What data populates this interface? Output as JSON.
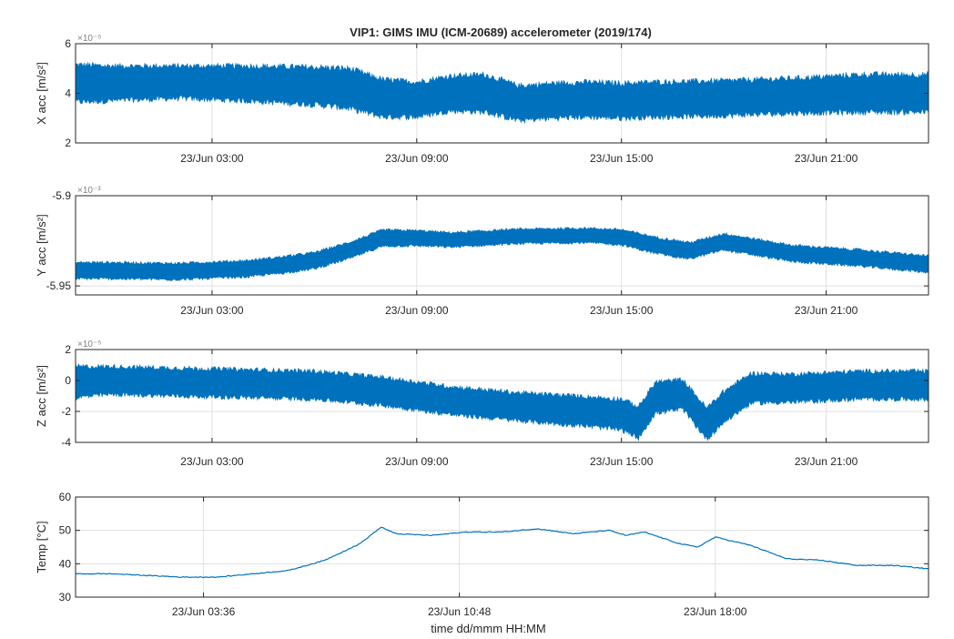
{
  "title": "VIP1: GIMS IMU (ICM-20689) accelerometer (2019/174)",
  "footer": "",
  "colors": {
    "series": "#0072BD",
    "axis": "#262626",
    "grid": "#e0e0e0"
  },
  "chart_data": [
    {
      "type": "area",
      "name": "x_acc",
      "ylabel": "X acc [m/s²]",
      "exponent": "×10⁻⁵",
      "ylim": [
        2,
        6
      ],
      "yticks": [
        2,
        4,
        6
      ],
      "xlim_hours": [
        -1,
        24
      ],
      "xticks_hours": [
        3,
        9,
        15,
        21
      ],
      "xtick_labels": [
        "23/Jun 03:00",
        "23/Jun 09:00",
        "23/Jun 15:00",
        "23/Jun 21:00"
      ],
      "series": [
        {
          "x_hours": [
            -1,
            0,
            2,
            4,
            6,
            7,
            8,
            9,
            10,
            11,
            12,
            13,
            14,
            15,
            16,
            18,
            20,
            22,
            24
          ],
          "center": [
            4.4,
            4.4,
            4.45,
            4.4,
            4.3,
            4.2,
            3.8,
            3.75,
            4.0,
            4.0,
            3.6,
            3.7,
            3.75,
            3.7,
            3.75,
            3.8,
            3.9,
            4.0,
            4.0
          ],
          "half_band": [
            0.75,
            0.7,
            0.65,
            0.7,
            0.75,
            0.8,
            0.75,
            0.7,
            0.7,
            0.75,
            0.7,
            0.7,
            0.7,
            0.7,
            0.7,
            0.7,
            0.7,
            0.75,
            0.75
          ]
        }
      ]
    },
    {
      "type": "area",
      "name": "y_acc",
      "ylabel": "Y acc [m/s²]",
      "exponent": "×10⁻³",
      "ylim": [
        -5.955,
        -5.9
      ],
      "yticks": [
        -5.95,
        -5.9
      ],
      "ytick_labels": [
        "-5.95",
        "-5.9"
      ],
      "xlim_hours": [
        -1,
        24
      ],
      "xticks_hours": [
        3,
        9,
        15,
        21
      ],
      "xtick_labels": [
        "23/Jun 03:00",
        "23/Jun 09:00",
        "23/Jun 15:00",
        "23/Jun 21:00"
      ],
      "series": [
        {
          "x_hours": [
            -1,
            0,
            2,
            4,
            5,
            6,
            7,
            8,
            9,
            10,
            12,
            14,
            15,
            16,
            17,
            18,
            20,
            22,
            24
          ],
          "center": [
            -5.9415,
            -5.9415,
            -5.942,
            -5.9405,
            -5.9385,
            -5.936,
            -5.9305,
            -5.9235,
            -5.9235,
            -5.9245,
            -5.9225,
            -5.922,
            -5.923,
            -5.9275,
            -5.9305,
            -5.9255,
            -5.932,
            -5.9345,
            -5.938
          ],
          "half_band": [
            0.0045,
            0.0045,
            0.0045,
            0.0045,
            0.0045,
            0.0045,
            0.0045,
            0.0045,
            0.0042,
            0.004,
            0.004,
            0.004,
            0.0042,
            0.0045,
            0.0045,
            0.0045,
            0.0045,
            0.0045,
            0.0045
          ]
        }
      ]
    },
    {
      "type": "area",
      "name": "z_acc",
      "ylabel": "Z acc [m/s²]",
      "exponent": "×10⁻⁵",
      "ylim": [
        -4,
        2
      ],
      "yticks": [
        -4,
        -2,
        0,
        2
      ],
      "xlim_hours": [
        -1,
        24
      ],
      "xticks_hours": [
        3,
        9,
        15,
        21
      ],
      "xtick_labels": [
        "23/Jun 03:00",
        "23/Jun 09:00",
        "23/Jun 15:00",
        "23/Jun 21:00"
      ],
      "series": [
        {
          "x_hours": [
            -1,
            0,
            2,
            4,
            6,
            8,
            10,
            12,
            14,
            15,
            15.5,
            16,
            16.8,
            17.5,
            18,
            18.8,
            20,
            22,
            24
          ],
          "center": [
            -0.1,
            0,
            -0.1,
            -0.2,
            -0.3,
            -0.7,
            -1.3,
            -1.7,
            -2.0,
            -2.2,
            -2.7,
            -1.1,
            -0.9,
            -2.8,
            -1.7,
            -0.5,
            -0.5,
            -0.3,
            -0.3
          ],
          "half_band": [
            1.0,
            0.9,
            0.9,
            0.9,
            0.9,
            0.9,
            0.9,
            0.9,
            0.95,
            1.0,
            1.0,
            1.0,
            0.95,
            1.0,
            1.0,
            0.95,
            0.9,
            0.9,
            0.9
          ]
        }
      ]
    },
    {
      "type": "line",
      "name": "temp",
      "ylabel": "Temp [°C]",
      "ylim": [
        30,
        60
      ],
      "yticks": [
        30,
        40,
        50,
        60
      ],
      "xlim_hours": [
        0,
        24
      ],
      "xticks_hours": [
        3.6,
        10.8,
        18.0
      ],
      "xtick_labels": [
        "23/Jun 03:36",
        "23/Jun 10:48",
        "23/Jun 18:00"
      ],
      "xlabel": "time dd/mmm HH:MM",
      "series": [
        {
          "x_hours": [
            0,
            1,
            2,
            3,
            4,
            5,
            6,
            7,
            8,
            8.6,
            9,
            10,
            11,
            12,
            13,
            14,
            15,
            15.5,
            16,
            17,
            17.5,
            18,
            19,
            20,
            21,
            22,
            23,
            24
          ],
          "values": [
            37,
            37,
            36.5,
            36,
            36,
            37,
            38,
            41,
            46,
            51,
            49,
            48.5,
            49.5,
            49.5,
            50.5,
            49,
            50,
            48.5,
            49.5,
            46,
            45,
            48,
            45.5,
            41.5,
            41,
            39.5,
            39.5,
            38.5
          ]
        }
      ]
    }
  ]
}
